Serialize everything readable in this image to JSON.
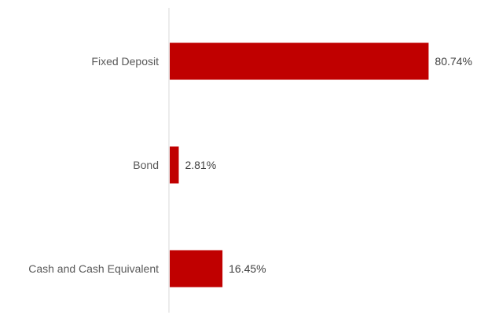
{
  "chart_data": {
    "type": "bar",
    "orientation": "horizontal",
    "categories": [
      "Fixed Deposit",
      "Bond",
      "Cash and Cash Equivalent"
    ],
    "values": [
      80.74,
      2.81,
      16.45
    ],
    "value_labels": [
      "80.74%",
      "2.81%",
      "16.45%"
    ],
    "unit": "%",
    "xlim": [
      0,
      100
    ],
    "grid": false,
    "legend": "none",
    "bar_color": "#c00000",
    "axis_color": "#d9d9d9"
  }
}
